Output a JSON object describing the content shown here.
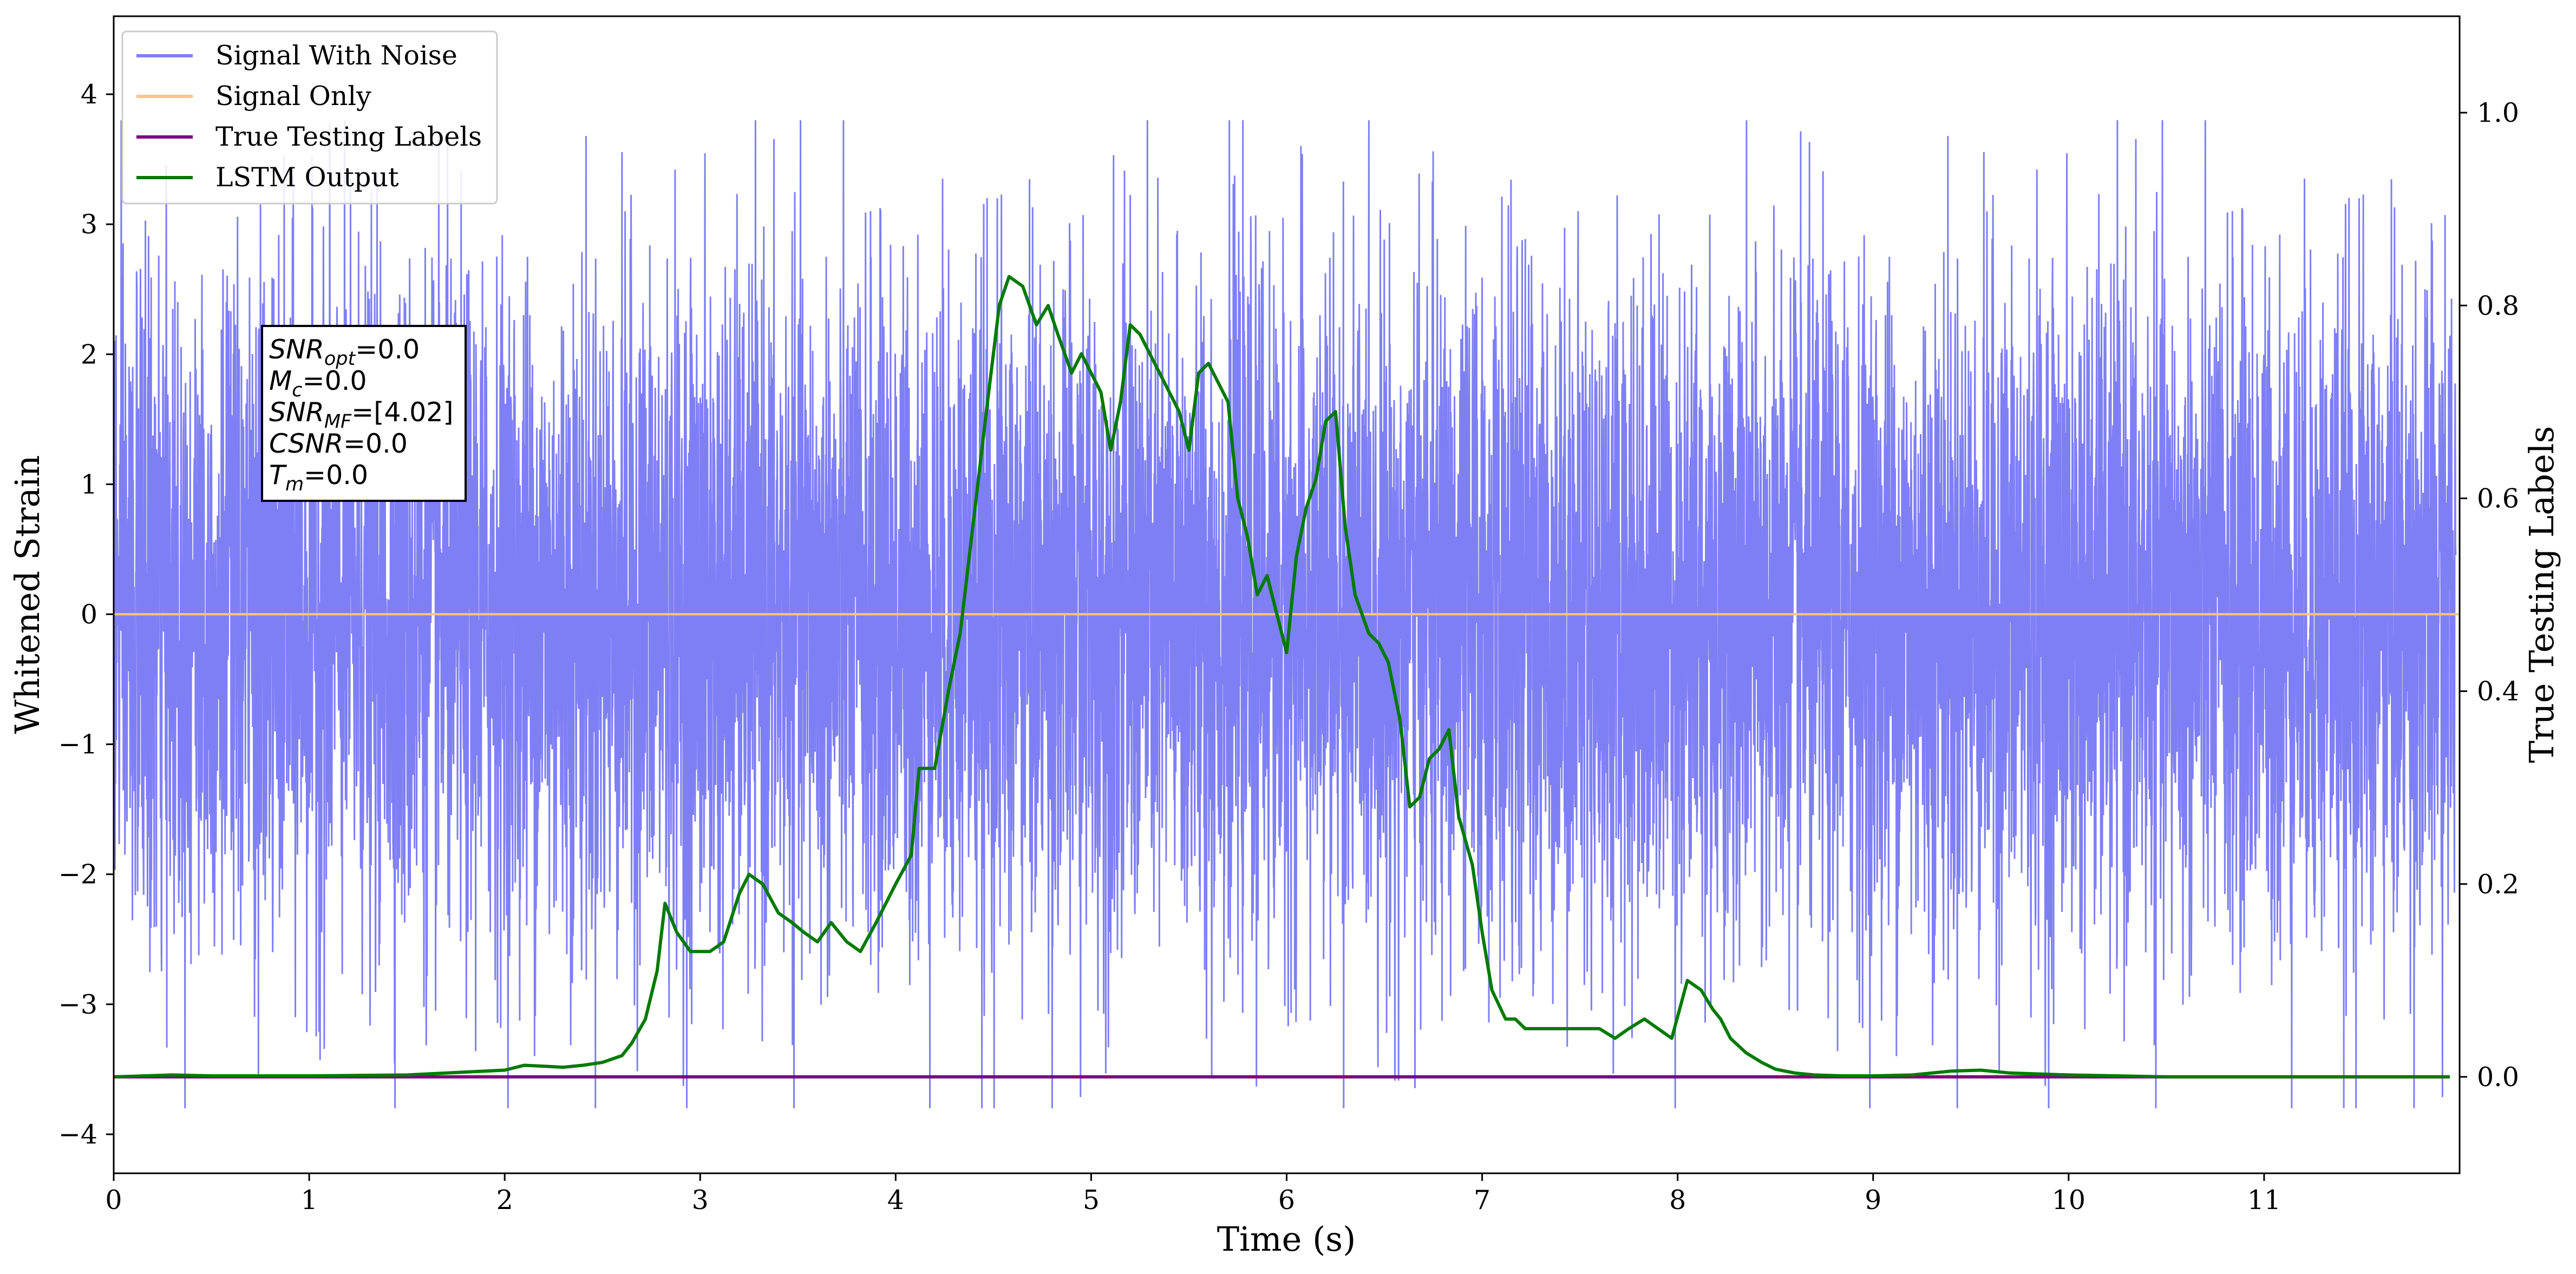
{
  "chart_data": {
    "type": "line",
    "xlabel": "Time (s)",
    "ylabel": "Whitened Strain",
    "y2label": "True Testing Labels",
    "xlim": [
      0,
      12
    ],
    "ylim": [
      -4.3,
      4.6
    ],
    "y2lim": [
      -0.1,
      1.1
    ],
    "x_ticks": [
      0,
      1,
      2,
      3,
      4,
      5,
      6,
      7,
      8,
      9,
      10,
      11
    ],
    "y_ticks": [
      -4,
      -3,
      -2,
      -1,
      0,
      1,
      2,
      3,
      4
    ],
    "y2_ticks": [
      0.0,
      0.2,
      0.4,
      0.6,
      0.8,
      1.0
    ],
    "grid": false,
    "legend_position": "top-left",
    "colors": {
      "signal_with_noise": "#7f7ff5",
      "signal_only": "#ffc87a",
      "true_labels": "#800080",
      "lstm_output": "#007a00"
    },
    "noise_description": "dense white noise band between about -2.5 and 2.5 with spikes reaching about ±3.8",
    "series": [
      {
        "name": "Signal With Noise",
        "axis": "left",
        "type": "noise",
        "core_amplitude": 1.3,
        "max_abs": 3.8
      },
      {
        "name": "Signal Only",
        "axis": "left",
        "x": [
          0,
          12
        ],
        "y": [
          0,
          0
        ]
      },
      {
        "name": "True Testing Labels",
        "axis": "right",
        "x": [
          0,
          11.95
        ],
        "y": [
          0,
          0
        ]
      },
      {
        "name": "LSTM Output",
        "axis": "right",
        "x": [
          0,
          0.3,
          0.5,
          1.0,
          1.5,
          1.8,
          2.0,
          2.1,
          2.2,
          2.3,
          2.4,
          2.5,
          2.6,
          2.65,
          2.72,
          2.78,
          2.82,
          2.88,
          2.95,
          3.05,
          3.12,
          3.2,
          3.25,
          3.32,
          3.4,
          3.47,
          3.53,
          3.6,
          3.67,
          3.75,
          3.82,
          3.9,
          4.0,
          4.08,
          4.12,
          4.2,
          4.27,
          4.33,
          4.4,
          4.47,
          4.53,
          4.58,
          4.65,
          4.72,
          4.78,
          4.83,
          4.9,
          4.95,
          5.0,
          5.05,
          5.1,
          5.15,
          5.2,
          5.25,
          5.3,
          5.35,
          5.4,
          5.45,
          5.5,
          5.55,
          5.6,
          5.65,
          5.7,
          5.75,
          5.8,
          5.85,
          5.9,
          5.95,
          6.0,
          6.05,
          6.1,
          6.15,
          6.2,
          6.25,
          6.3,
          6.35,
          6.42,
          6.47,
          6.52,
          6.58,
          6.63,
          6.68,
          6.73,
          6.78,
          6.83,
          6.88,
          6.95,
          7.0,
          7.05,
          7.12,
          7.17,
          7.22,
          7.3,
          7.38,
          7.45,
          7.52,
          7.6,
          7.68,
          7.75,
          7.83,
          7.9,
          7.97,
          8.05,
          8.12,
          8.18,
          8.22,
          8.27,
          8.35,
          8.43,
          8.5,
          8.6,
          8.7,
          8.85,
          9.0,
          9.2,
          9.4,
          9.55,
          9.7,
          10.0,
          10.5,
          11.0,
          11.5,
          11.95
        ],
        "y": [
          0.0,
          0.002,
          0.001,
          0.001,
          0.002,
          0.005,
          0.007,
          0.012,
          0.011,
          0.01,
          0.012,
          0.015,
          0.022,
          0.035,
          0.06,
          0.11,
          0.18,
          0.15,
          0.13,
          0.13,
          0.14,
          0.19,
          0.21,
          0.2,
          0.17,
          0.16,
          0.15,
          0.14,
          0.16,
          0.14,
          0.13,
          0.16,
          0.2,
          0.23,
          0.32,
          0.32,
          0.4,
          0.46,
          0.58,
          0.7,
          0.8,
          0.83,
          0.82,
          0.78,
          0.8,
          0.77,
          0.73,
          0.75,
          0.73,
          0.71,
          0.65,
          0.7,
          0.78,
          0.77,
          0.75,
          0.73,
          0.71,
          0.69,
          0.65,
          0.73,
          0.74,
          0.72,
          0.7,
          0.6,
          0.56,
          0.5,
          0.52,
          0.48,
          0.44,
          0.54,
          0.59,
          0.62,
          0.68,
          0.69,
          0.57,
          0.5,
          0.46,
          0.45,
          0.43,
          0.37,
          0.28,
          0.29,
          0.33,
          0.34,
          0.36,
          0.27,
          0.22,
          0.15,
          0.09,
          0.06,
          0.06,
          0.05,
          0.05,
          0.05,
          0.05,
          0.05,
          0.05,
          0.04,
          0.05,
          0.06,
          0.05,
          0.04,
          0.1,
          0.09,
          0.07,
          0.06,
          0.04,
          0.025,
          0.015,
          0.008,
          0.004,
          0.002,
          0.001,
          0.001,
          0.002,
          0.006,
          0.007,
          0.004,
          0.002,
          0.0,
          0.0,
          0.0,
          0.0
        ]
      }
    ],
    "annotation_lines": [
      {
        "name": "SNR",
        "sub": "opt",
        "value": "=0.0"
      },
      {
        "name": "M",
        "sub": "c",
        "value": "=0.0"
      },
      {
        "name": "SNR",
        "sub": "MF",
        "value": "=[4.02]"
      },
      {
        "name": "CSNR",
        "sub": "",
        "value": "=0.0"
      },
      {
        "name": "T",
        "sub": "m",
        "value": "=0.0"
      }
    ]
  }
}
